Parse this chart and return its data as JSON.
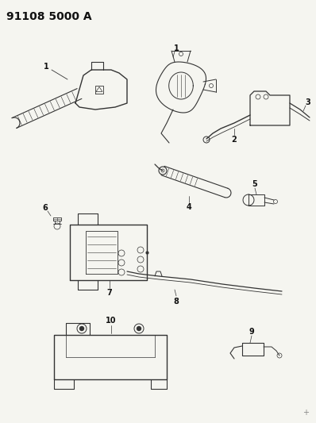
{
  "title": "91108 5000 A",
  "title_fontsize": 10,
  "title_fontweight": "bold",
  "bg_color": "#f5f5f0",
  "line_color": "#333333",
  "label_color": "#111111",
  "fig_width": 3.98,
  "fig_height": 5.33,
  "dpi": 100
}
